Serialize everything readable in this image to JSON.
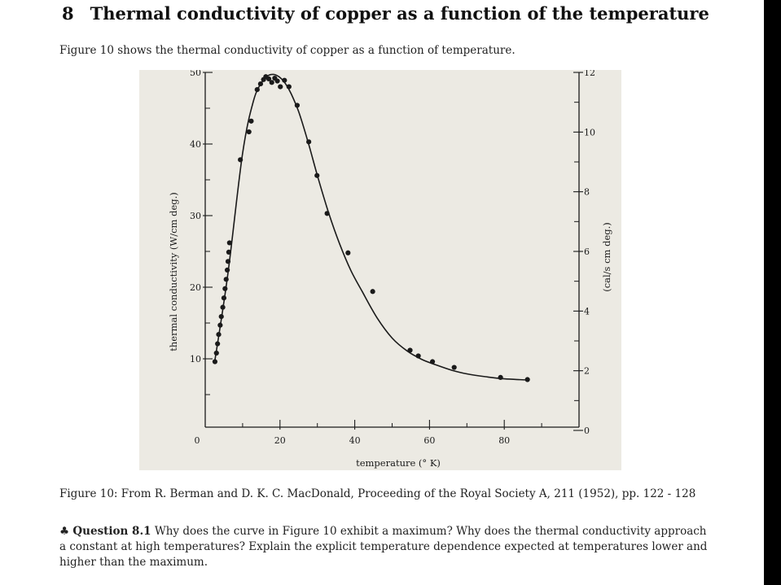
{
  "section": {
    "number": "8",
    "title": "Thermal conductivity of copper as a function of the temperature"
  },
  "intro_text": "Figure 10 shows the thermal conductivity of copper as a function of temperature.",
  "chart_data": {
    "type": "scatter",
    "xlabel": "temperature (° K)",
    "ylabel": "thermal conductivity (W/cm deg.)",
    "ylabel_right": "(cal/s cm deg.)",
    "xlim": [
      0,
      100
    ],
    "ylim": [
      0,
      50
    ],
    "ylim_right": [
      0,
      12
    ],
    "x_ticks": [
      0,
      20,
      40,
      60,
      80
    ],
    "x_tick_labels": [
      "0",
      "20",
      "40",
      "60",
      "80"
    ],
    "y_ticks": [
      10,
      20,
      30,
      40,
      50
    ],
    "y_tick_labels": [
      "10",
      "20",
      "30",
      "40",
      "50"
    ],
    "y_right_ticks": [
      0,
      2,
      4,
      6,
      8,
      10,
      12
    ],
    "y_right_tick_labels": [
      "0",
      "2",
      "4",
      "6",
      "8",
      "10",
      "12"
    ],
    "grid": false,
    "series": [
      {
        "x": [
          2.6,
          3.0,
          3.3,
          3.6,
          4.0,
          4.3,
          4.7,
          5.0,
          5.3,
          5.6,
          5.9,
          6.1,
          6.3,
          6.5,
          9.4,
          11.7,
          12.3,
          13.9,
          14.8,
          15.6,
          16.2,
          17.0,
          17.8,
          18.6,
          19.3,
          20.1,
          21.2,
          22.4,
          24.6,
          27.7,
          29.9,
          32.6,
          38.2,
          44.8,
          54.8,
          57.0,
          60.8,
          66.6,
          79.0,
          86.2
        ],
        "y": [
          9.6,
          10.8,
          12.1,
          13.4,
          14.7,
          15.9,
          17.2,
          18.5,
          19.8,
          21.1,
          22.4,
          23.6,
          24.9,
          26.2,
          37.8,
          41.7,
          43.2,
          47.6,
          48.4,
          49.0,
          49.4,
          49.1,
          48.6,
          49.2,
          48.8,
          48.0,
          48.9,
          48.0,
          45.4,
          40.3,
          35.6,
          30.3,
          24.8,
          19.4,
          11.2,
          10.4,
          9.6,
          8.8,
          7.4,
          7.1
        ]
      }
    ],
    "curve": {
      "x": [
        2.5,
        6.0,
        10.0,
        13.0,
        15.5,
        17.0,
        18.5,
        20.0,
        21.5,
        23.0,
        25.0,
        27.5,
        30.0,
        33.0,
        36.0,
        39.0,
        42.0,
        46.0,
        50.0,
        54.0,
        58.0,
        62.0,
        66.0,
        70.0,
        75.0,
        80.0,
        86.0
      ],
      "y": [
        9.5,
        21.6,
        38.7,
        46.2,
        48.9,
        49.6,
        49.7,
        49.3,
        48.4,
        47.0,
        44.5,
        40.3,
        35.6,
        30.4,
        26.0,
        22.3,
        19.4,
        15.7,
        12.9,
        11.1,
        9.9,
        9.1,
        8.4,
        7.9,
        7.5,
        7.2,
        7.05
      ]
    }
  },
  "caption": "Figure 10: From R. Berman and D. K. C. MacDonald, Proceeding of the Royal Society A, 211 (1952), pp. 122 - 128",
  "question": {
    "symbol": "♣",
    "label": "Question 8.1",
    "text": "Why does the curve in Figure 10 exhibit a maximum? Why does the thermal conductivity approach a constant at high temperatures? Explain the explicit temperature dependence expected at temperatures lower and higher than the maximum."
  }
}
